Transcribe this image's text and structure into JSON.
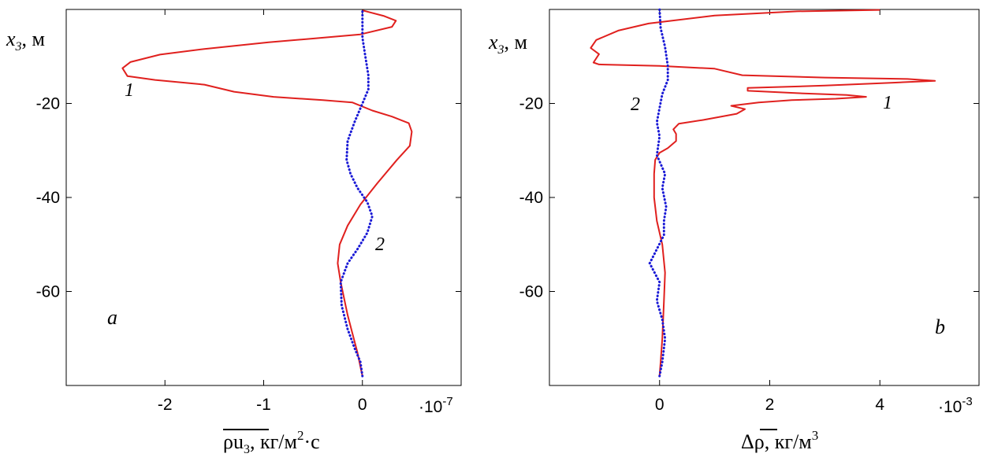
{
  "chart_data": [
    {
      "type": "line",
      "panel_letter": "a",
      "ylabel": {
        "var": "x",
        "sub": "3",
        "unit": ", м"
      },
      "xlabel": {
        "main": "ρu",
        "sub": "3",
        "unit": ", кг/м",
        "sup": "2",
        "tail": "·с"
      },
      "x_scale": {
        "prefix": "·10",
        "exp": "-7"
      },
      "xlim": [
        -3.0,
        1.0
      ],
      "ylim": [
        -80,
        0
      ],
      "xticks": [
        -2,
        -1,
        0
      ],
      "xticklabels": [
        "-2",
        "-1",
        "0"
      ],
      "yticks": [
        -20,
        -40,
        -60
      ],
      "yticklabels": [
        "-20",
        "-40",
        "-60"
      ],
      "series": [
        {
          "name": "1",
          "color": "#e0201e",
          "style": "solid",
          "points": [
            [
              0.0,
              -78
            ],
            [
              -0.02,
              -76
            ],
            [
              -0.05,
              -73
            ],
            [
              -0.1,
              -69
            ],
            [
              -0.15,
              -65
            ],
            [
              -0.18,
              -62
            ],
            [
              -0.22,
              -58
            ],
            [
              -0.25,
              -54
            ],
            [
              -0.23,
              -50
            ],
            [
              -0.15,
              -46
            ],
            [
              -0.02,
              -41.5
            ],
            [
              0.15,
              -37
            ],
            [
              0.35,
              -32
            ],
            [
              0.48,
              -29
            ],
            [
              0.5,
              -26
            ],
            [
              0.47,
              -24.2
            ],
            [
              0.3,
              -22.8
            ],
            [
              0.1,
              -21.5
            ],
            [
              -0.1,
              -19.8
            ],
            [
              -0.4,
              -19.3
            ],
            [
              -0.9,
              -18.6
            ],
            [
              -1.3,
              -17.5
            ],
            [
              -1.6,
              -16
            ],
            [
              -2.1,
              -15
            ],
            [
              -2.38,
              -14.2
            ],
            [
              -2.43,
              -12.5
            ],
            [
              -2.35,
              -11.2
            ],
            [
              -2.05,
              -9.6
            ],
            [
              -1.6,
              -8.4
            ],
            [
              -0.95,
              -7
            ],
            [
              -0.5,
              -6.2
            ],
            [
              -0.02,
              -5.3
            ],
            [
              0.3,
              -3.7
            ],
            [
              0.34,
              -2.4
            ],
            [
              0.22,
              -1.4
            ],
            [
              0.0,
              -0.2
            ]
          ]
        },
        {
          "name": "2",
          "color": "#1a1ad6",
          "style": "dotted",
          "points": [
            [
              0.0,
              -78
            ],
            [
              -0.02,
              -75
            ],
            [
              -0.08,
              -72
            ],
            [
              -0.15,
              -68
            ],
            [
              -0.21,
              -63
            ],
            [
              -0.22,
              -58
            ],
            [
              -0.15,
              -54
            ],
            [
              -0.05,
              -51
            ],
            [
              0.05,
              -47.5
            ],
            [
              0.1,
              -44
            ],
            [
              0.05,
              -41
            ],
            [
              -0.05,
              -38
            ],
            [
              -0.12,
              -35
            ],
            [
              -0.16,
              -32
            ],
            [
              -0.15,
              -28
            ],
            [
              -0.08,
              -24
            ],
            [
              0.0,
              -20
            ],
            [
              0.06,
              -17
            ],
            [
              0.06,
              -14
            ],
            [
              0.03,
              -10
            ],
            [
              0.0,
              -6
            ],
            [
              0.0,
              -3
            ],
            [
              0.0,
              0
            ]
          ]
        }
      ]
    },
    {
      "type": "line",
      "panel_letter": "b",
      "ylabel": {
        "var": "x",
        "sub": "3",
        "unit": ", м"
      },
      "xlabel": {
        "main": "Δρ",
        "unit": ", кг/м",
        "sup": "3"
      },
      "x_scale": {
        "prefix": "·10",
        "exp": "-3"
      },
      "xlim": [
        -2.0,
        5.8
      ],
      "ylim": [
        -80,
        0
      ],
      "xticks": [
        0,
        2,
        4
      ],
      "xticklabels": [
        "0",
        "2",
        "4"
      ],
      "yticks": [
        -20,
        -40,
        -60
      ],
      "yticklabels": [
        "-20",
        "-40",
        "-60"
      ],
      "series": [
        {
          "name": "1",
          "color": "#e0201e",
          "style": "solid",
          "points": [
            [
              0.0,
              -78
            ],
            [
              0.02,
              -75
            ],
            [
              0.05,
              -70
            ],
            [
              0.08,
              -62
            ],
            [
              0.1,
              -56
            ],
            [
              0.05,
              -50
            ],
            [
              -0.05,
              -45
            ],
            [
              -0.1,
              -40
            ],
            [
              -0.1,
              -35
            ],
            [
              -0.08,
              -32
            ],
            [
              0.0,
              -30.5
            ],
            [
              0.15,
              -29.5
            ],
            [
              0.3,
              -28
            ],
            [
              0.3,
              -26.5
            ],
            [
              0.25,
              -25.5
            ],
            [
              0.35,
              -24.3
            ],
            [
              0.8,
              -23.5
            ],
            [
              1.4,
              -22.2
            ],
            [
              1.55,
              -21.2
            ],
            [
              1.3,
              -20.5
            ],
            [
              1.8,
              -19.8
            ],
            [
              2.4,
              -19.3
            ],
            [
              3.2,
              -19
            ],
            [
              3.75,
              -18.6
            ],
            [
              3.4,
              -18.2
            ],
            [
              2.5,
              -17.8
            ],
            [
              1.6,
              -17.3
            ],
            [
              1.6,
              -16.7
            ],
            [
              3.0,
              -16.2
            ],
            [
              4.2,
              -15.6
            ],
            [
              5.0,
              -15.2
            ],
            [
              4.5,
              -14.8
            ],
            [
              3.0,
              -14.5
            ],
            [
              1.5,
              -14.0
            ],
            [
              1.0,
              -12.6
            ],
            [
              0.0,
              -12.0
            ],
            [
              -1.1,
              -11.7
            ],
            [
              -1.2,
              -11.3
            ],
            [
              -1.1,
              -9.5
            ],
            [
              -1.25,
              -8.2
            ],
            [
              -1.15,
              -6.5
            ],
            [
              -0.75,
              -4.5
            ],
            [
              -0.2,
              -3.0
            ],
            [
              1.0,
              -1.3
            ],
            [
              2.5,
              -0.4
            ],
            [
              4.0,
              -0.1
            ]
          ]
        },
        {
          "name": "2",
          "color": "#1a1ad6",
          "style": "dotted",
          "points": [
            [
              0.0,
              -78
            ],
            [
              0.05,
              -75
            ],
            [
              0.1,
              -70
            ],
            [
              0.05,
              -66
            ],
            [
              -0.05,
              -62
            ],
            [
              0.0,
              -58
            ],
            [
              -0.18,
              -54
            ],
            [
              -0.05,
              -51
            ],
            [
              0.08,
              -48
            ],
            [
              0.08,
              -45
            ],
            [
              0.12,
              -42
            ],
            [
              0.05,
              -38
            ],
            [
              0.1,
              -35
            ],
            [
              -0.05,
              -31
            ],
            [
              0.0,
              -27
            ],
            [
              -0.05,
              -24
            ],
            [
              0.0,
              -21
            ],
            [
              0.05,
              -18
            ],
            [
              0.15,
              -15
            ],
            [
              0.15,
              -12
            ],
            [
              0.1,
              -8
            ],
            [
              0.02,
              -4
            ],
            [
              0.0,
              0
            ]
          ]
        }
      ]
    }
  ]
}
